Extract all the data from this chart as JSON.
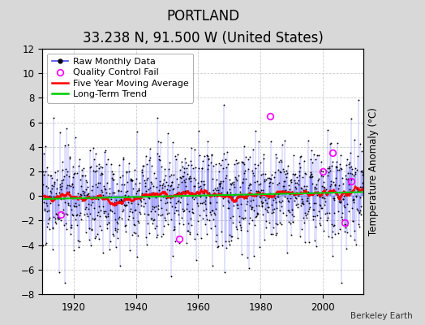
{
  "title": "PORTLAND",
  "subtitle": "33.238 N, 91.500 W (United States)",
  "ylabel": "Temperature Anomaly (°C)",
  "credit": "Berkeley Earth",
  "ylim": [
    -8,
    12
  ],
  "yticks": [
    -8,
    -6,
    -4,
    -2,
    0,
    2,
    4,
    6,
    8,
    10,
    12
  ],
  "year_start": 1910,
  "year_end": 2013,
  "seed": 17,
  "bg_color": "#d8d8d8",
  "plot_bg_color": "#ffffff",
  "raw_line_color": "#4444ff",
  "raw_dot_color": "black",
  "moving_avg_color": "red",
  "trend_color": "#00cc00",
  "qc_fail_color": "magenta",
  "legend_fontsize": 8.0,
  "title_fontsize": 12,
  "subtitle_fontsize": 8.5,
  "noise_std": 2.0,
  "moving_avg_window": 60,
  "qc_fail_years": [
    1916,
    1954,
    1983,
    2000,
    2003,
    2007,
    2009
  ],
  "qc_fail_vals": [
    -1.5,
    -3.5,
    6.5,
    2.0,
    3.5,
    -2.2,
    1.2
  ]
}
